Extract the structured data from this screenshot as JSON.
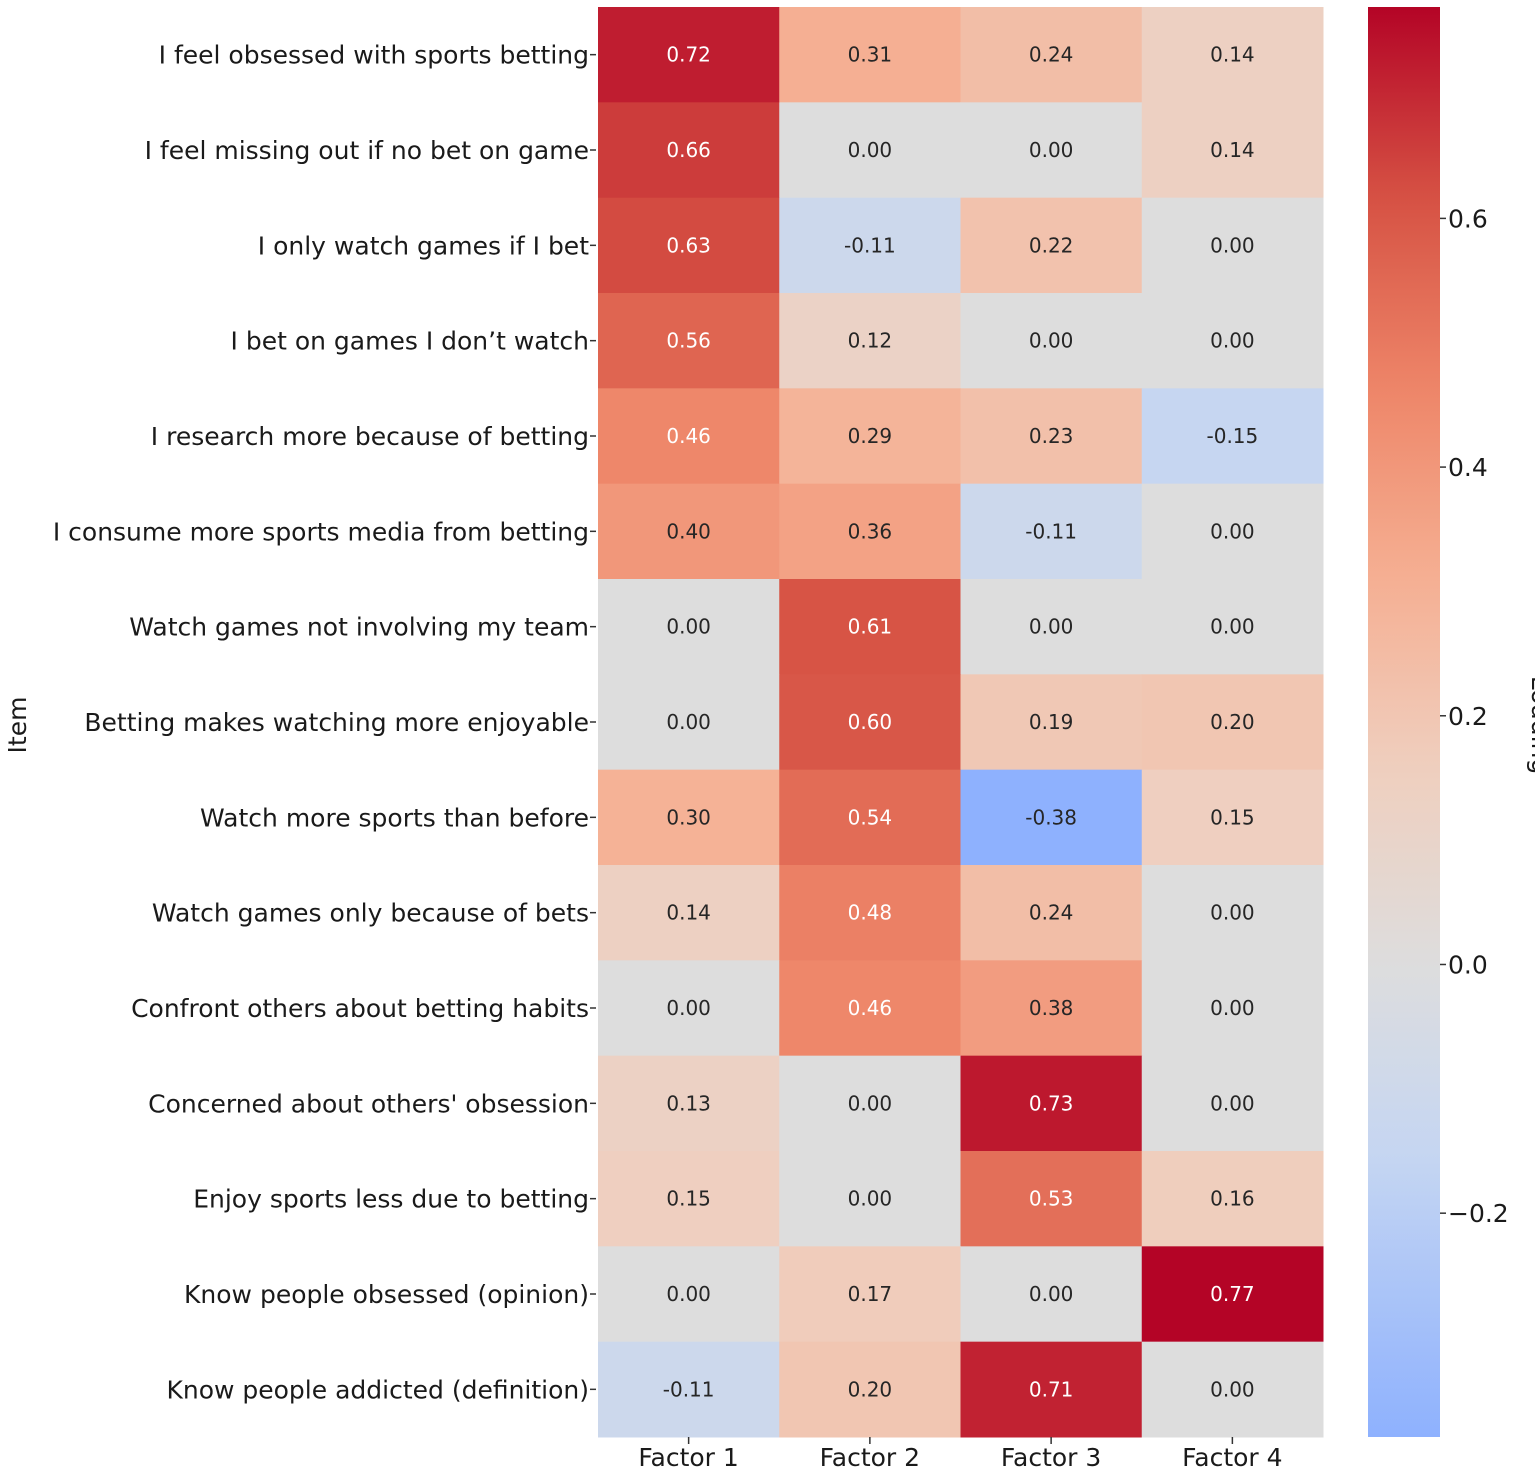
{
  "chart_data": {
    "type": "heatmap",
    "title": "",
    "xlabel": "",
    "ylabel": "Item",
    "colorbar_label": "Loading",
    "colormap": "coolwarm",
    "center": 0,
    "value_range": [
      -0.38,
      0.77
    ],
    "colorbar_ticks": [
      "−0.2",
      "0.0",
      "0.2",
      "0.4",
      "0.6"
    ],
    "colorbar_tick_values": [
      -0.2,
      0.0,
      0.2,
      0.4,
      0.6
    ],
    "columns": [
      "Factor 1",
      "Factor 2",
      "Factor 3",
      "Factor 4"
    ],
    "rows": [
      "I feel obsessed with sports betting",
      "I feel missing out if no bet on game",
      "I only watch games if I bet",
      "I bet on games I don’t watch",
      "I research more because of betting",
      "I consume more sports media from betting",
      "Watch games not involving my team",
      "Betting makes watching more enjoyable",
      "Watch more sports than before",
      "Watch games only because of bets",
      "Confront others about betting habits",
      "Concerned about others' obsession",
      "Enjoy sports less due to betting",
      "Know people obsessed (opinion)",
      "Know people addicted (definition)"
    ],
    "values": [
      [
        0.72,
        0.31,
        0.24,
        0.14
      ],
      [
        0.66,
        0.0,
        0.0,
        0.14
      ],
      [
        0.63,
        -0.11,
        0.22,
        0.0
      ],
      [
        0.56,
        0.12,
        0.0,
        0.0
      ],
      [
        0.46,
        0.29,
        0.23,
        -0.15
      ],
      [
        0.4,
        0.36,
        -0.11,
        0.0
      ],
      [
        0.0,
        0.61,
        0.0,
        0.0
      ],
      [
        0.0,
        0.6,
        0.19,
        0.2
      ],
      [
        0.3,
        0.54,
        -0.38,
        0.15
      ],
      [
        0.14,
        0.48,
        0.24,
        0.0
      ],
      [
        0.0,
        0.46,
        0.38,
        0.0
      ],
      [
        0.13,
        0.0,
        0.73,
        0.0
      ],
      [
        0.15,
        0.0,
        0.53,
        0.16
      ],
      [
        0.0,
        0.17,
        0.0,
        0.77
      ],
      [
        -0.11,
        0.2,
        0.71,
        0.0
      ]
    ],
    "annotation_format": "0.00"
  }
}
